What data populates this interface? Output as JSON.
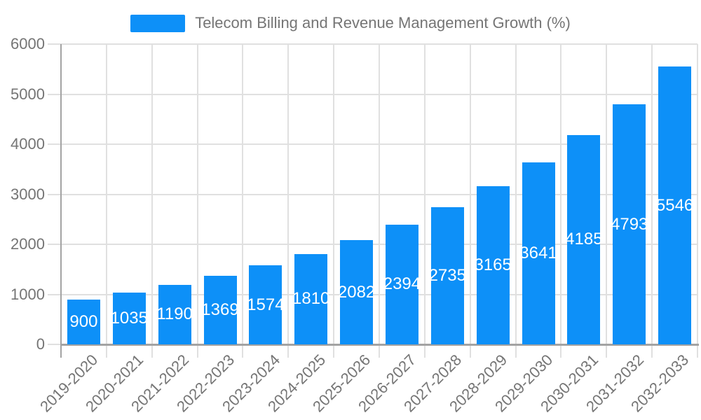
{
  "legend": {
    "label": "Telecom Billing and Revenue Management Growth (%)"
  },
  "chart_data": {
    "type": "bar",
    "title": "",
    "series_name": "Telecom Billing and Revenue Management Growth (%)",
    "categories": [
      "2019-2020",
      "2020-2021",
      "2021-2022",
      "2022-2023",
      "2023-2024",
      "2024-2025",
      "2025-2026",
      "2026-2027",
      "2027-2028",
      "2028-2029",
      "2029-2030",
      "2030-2031",
      "2031-2032",
      "2032-2033"
    ],
    "values": [
      900,
      1035,
      1190,
      1369,
      1574,
      1810,
      2082,
      2394,
      2735,
      3165,
      3641,
      4185,
      4793,
      5546
    ],
    "value_labels_shown": true,
    "xlabel": "",
    "ylabel": "",
    "ylim": [
      0,
      6000
    ],
    "yticks": [
      0,
      1000,
      2000,
      3000,
      4000,
      5000,
      6000
    ],
    "grid": true,
    "legend_position": "top",
    "x_tick_rotation_deg": 45,
    "bar_color": "#0d90f8",
    "value_label_color": "#ffffff",
    "axis_text_color": "#757575",
    "grid_color": "#e0e0e0",
    "axis_line_color": "#a3a3a3",
    "background_color": "#ffffff"
  }
}
